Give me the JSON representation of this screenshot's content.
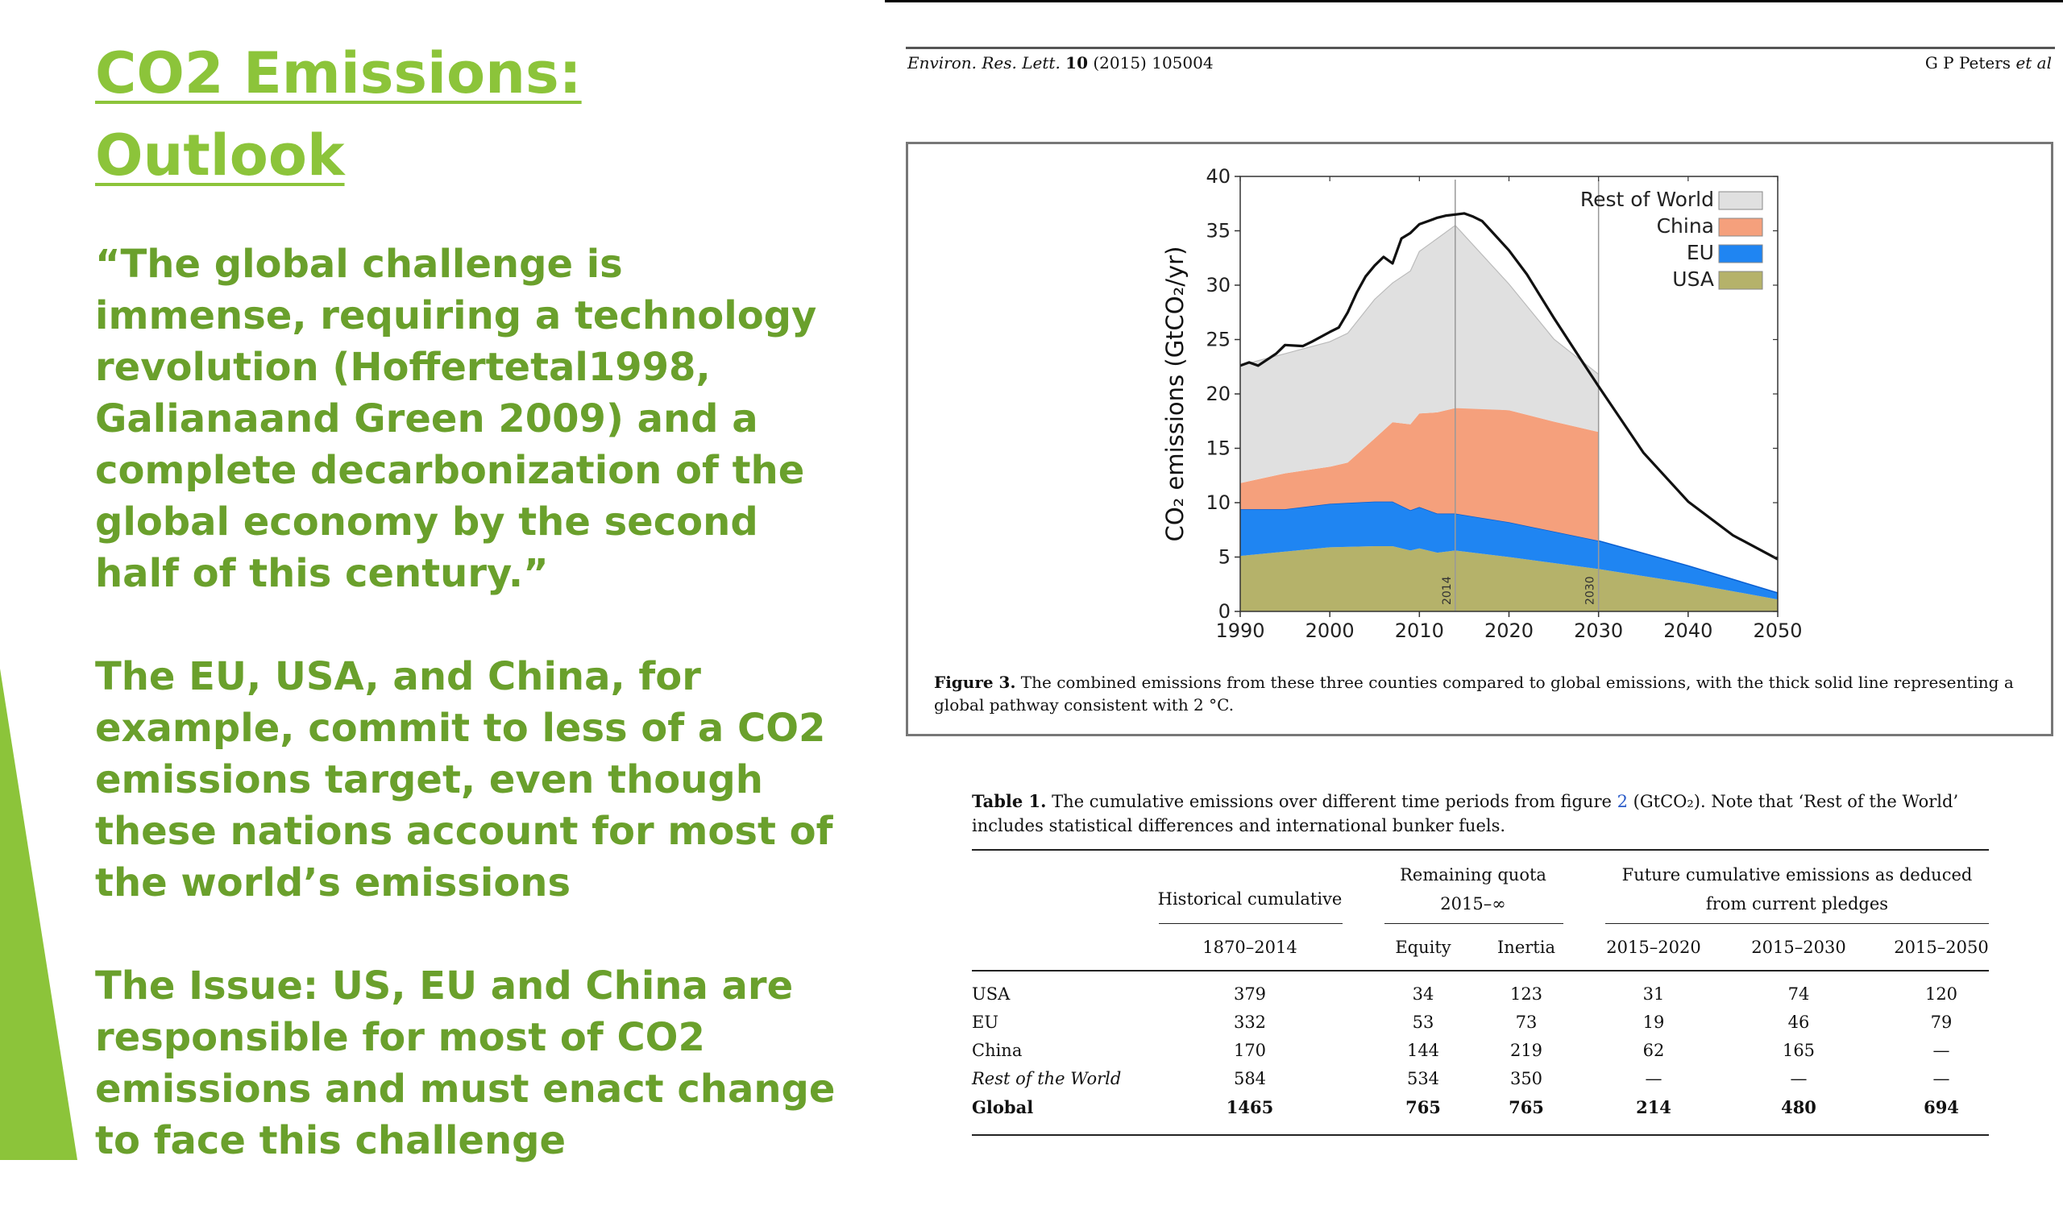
{
  "slide": {
    "title": "CO2 Emissions: Outlook",
    "paragraphs": [
      "“The global challenge is immense, requiring a technology revolution (Hoffertetal1998, Galianaand Green 2009) and a complete decarbonization of the global economy by the second half of this century.”",
      "The EU, USA, and China, for example, commit to less of a CO2 emissions target, even though these nations account for most of the world’s emissions",
      "The Issue: US, EU and China are responsible for most of CO2 emissions and must enact change to face this challenge"
    ],
    "accent_color": "#8cc43a",
    "text_color": "#6aa02c"
  },
  "paper_header": {
    "journal": "Environ. Res. Lett.",
    "volume": "10",
    "year_article": "(2015) 105004",
    "authors": "G P Peters",
    "et_al": "et al"
  },
  "figure": {
    "caption_label": "Figure 3.",
    "caption_text": "The combined emissions from these three counties compared to global emissions, with the thick solid line representing a global pathway consistent with 2 °C."
  },
  "chart_data": {
    "type": "area",
    "ylabel": "CO₂ emissions (GtCO₂/yr)",
    "xlabel": "",
    "xlim": [
      1990,
      2050
    ],
    "ylim": [
      0,
      40
    ],
    "x_ticks": [
      1990,
      2000,
      2010,
      2020,
      2030,
      2040,
      2050
    ],
    "y_ticks": [
      0,
      5,
      10,
      15,
      20,
      25,
      30,
      35,
      40
    ],
    "vertical_markers": [
      {
        "x": 2014,
        "label": "2014"
      },
      {
        "x": 2030,
        "label": "2030"
      }
    ],
    "legend_position": "top-right",
    "series": [
      {
        "name": "USA",
        "color": "#b5b26a",
        "x": [
          1990,
          1995,
          2000,
          2005,
          2007,
          2009,
          2010,
          2012,
          2014,
          2020,
          2030,
          2040,
          2050
        ],
        "values": [
          5.1,
          5.5,
          5.9,
          6.0,
          6.0,
          5.6,
          5.8,
          5.4,
          5.6,
          5.0,
          3.9,
          2.6,
          1.1
        ]
      },
      {
        "name": "EU",
        "color": "#1f85f2",
        "x": [
          1990,
          1995,
          2000,
          2005,
          2007,
          2009,
          2010,
          2012,
          2014,
          2020,
          2030,
          2040,
          2050
        ],
        "values": [
          4.3,
          3.9,
          4.0,
          4.1,
          4.1,
          3.7,
          3.8,
          3.6,
          3.4,
          3.2,
          2.6,
          1.6,
          0.6
        ]
      },
      {
        "name": "China",
        "color": "#f5a07c",
        "x": [
          1990,
          1995,
          2000,
          2002,
          2005,
          2007,
          2009,
          2010,
          2012,
          2014,
          2016,
          2020,
          2025,
          2030
        ],
        "values": [
          2.4,
          3.3,
          3.4,
          3.7,
          5.8,
          7.3,
          7.9,
          8.6,
          9.3,
          9.7,
          10.0,
          10.3,
          10.1,
          10.0
        ]
      },
      {
        "name": "Rest of World",
        "color": "#e0e0e0",
        "x": [
          1990,
          1992,
          1995,
          1997,
          2000,
          2002,
          2005,
          2007,
          2009,
          2010,
          2012,
          2014,
          2020,
          2025,
          2030
        ],
        "values": [
          10.8,
          10.9,
          11.0,
          11.2,
          11.5,
          11.9,
          12.8,
          12.8,
          14.1,
          14.9,
          16.0,
          16.8,
          11.6,
          7.6,
          5.3
        ]
      }
    ],
    "global_pathway": {
      "name": "",
      "color": "#111111",
      "x": [
        1990,
        1991,
        1992,
        1994,
        1995,
        1997,
        1998,
        2000,
        2001,
        2002,
        2003,
        2004,
        2005,
        2006,
        2007,
        2008,
        2009,
        2010,
        2011,
        2012,
        2013,
        2014,
        2015,
        2016,
        2017,
        2018,
        2020,
        2022,
        2025,
        2028,
        2030,
        2035,
        2040,
        2045,
        2050
      ],
      "values": [
        22.6,
        22.9,
        22.6,
        23.7,
        24.5,
        24.4,
        24.8,
        25.7,
        26.1,
        27.5,
        29.3,
        30.8,
        31.8,
        32.6,
        32.0,
        34.3,
        34.8,
        35.6,
        35.9,
        36.2,
        36.4,
        36.5,
        36.6,
        36.3,
        35.9,
        35.0,
        33.2,
        31.0,
        27.0,
        23.2,
        20.7,
        14.6,
        10.1,
        7.0,
        4.8
      ]
    }
  },
  "table": {
    "caption_label": "Table 1.",
    "caption_text_before": "The cumulative emissions over different time periods from figure",
    "caption_link": "2",
    "caption_text_after": "(GtCO₂). Note that ‘Rest of the World’ includes statistical differences and international bunker fuels.",
    "group_headers": [
      "Historical cumulative",
      "Remaining quota 2015–∞",
      "Future cumulative emissions as deduced from current pledges"
    ],
    "columns": [
      "1870–2014",
      "Equity",
      "Inertia",
      "2015–2020",
      "2015–2030",
      "2015–2050"
    ],
    "rows": [
      {
        "label": "USA",
        "values": [
          "379",
          "34",
          "123",
          "31",
          "74",
          "120"
        ],
        "italic": false,
        "bold": false
      },
      {
        "label": "EU",
        "values": [
          "332",
          "53",
          "73",
          "19",
          "46",
          "79"
        ],
        "italic": false,
        "bold": false
      },
      {
        "label": "China",
        "values": [
          "170",
          "144",
          "219",
          "62",
          "165",
          "—"
        ],
        "italic": false,
        "bold": false
      },
      {
        "label": "Rest of the World",
        "values": [
          "584",
          "534",
          "350",
          "—",
          "—",
          "—"
        ],
        "italic": true,
        "bold": false
      },
      {
        "label": "Global",
        "values": [
          "1465",
          "765",
          "765",
          "214",
          "480",
          "694"
        ],
        "italic": false,
        "bold": true
      }
    ]
  }
}
